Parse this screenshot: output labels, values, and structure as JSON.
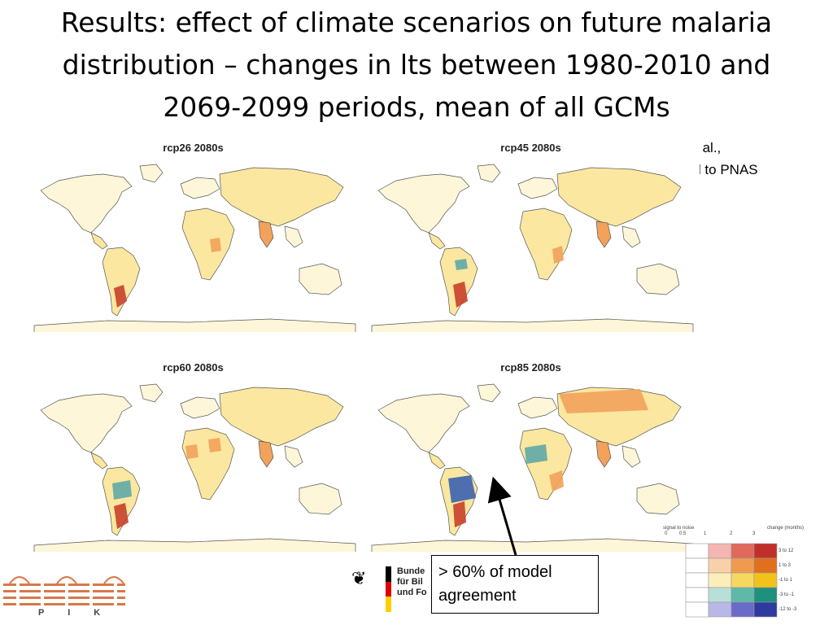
{
  "slide": {
    "title_line1": "Results: effect of climate scenarios on future malaria",
    "title_line2": "distribution – changes in lts between 1980-2010 and",
    "title_line3": "2069-2099 periods, mean of all GCMs",
    "citation_line1": "Kovats at al.,",
    "citation_line2": "submitted to PNAS"
  },
  "maps": [
    {
      "title": "rcp26 2080s"
    },
    {
      "title": "rcp45 2080s"
    },
    {
      "title": "rcp60 2080s"
    },
    {
      "title": "rcp85 2080s"
    }
  ],
  "callout": {
    "line1": "> 60% of model",
    "line2": "agreement"
  },
  "logos": {
    "pik_text": "P I K",
    "bmbf_line1": "Bunde",
    "bmbf_line2": "für Bil",
    "bmbf_line3": "und Fo"
  },
  "legend": {
    "signal_label": "signal to noise",
    "change_label": "change (months)",
    "snr_ticks": [
      "0",
      "0.5",
      "1",
      "2",
      "3"
    ],
    "rows": [
      "3 to 12",
      "1 to 3",
      "-1 to 1",
      "-3 to -1",
      "-12 to -3"
    ]
  },
  "colors": {
    "land_light": "#fdf6d8",
    "land_yellow": "#fbe7a0",
    "land_orange": "#f2a25a",
    "land_red": "#c8402a",
    "land_blue": "#3a62b0",
    "land_teal": "#5fa9a6"
  }
}
